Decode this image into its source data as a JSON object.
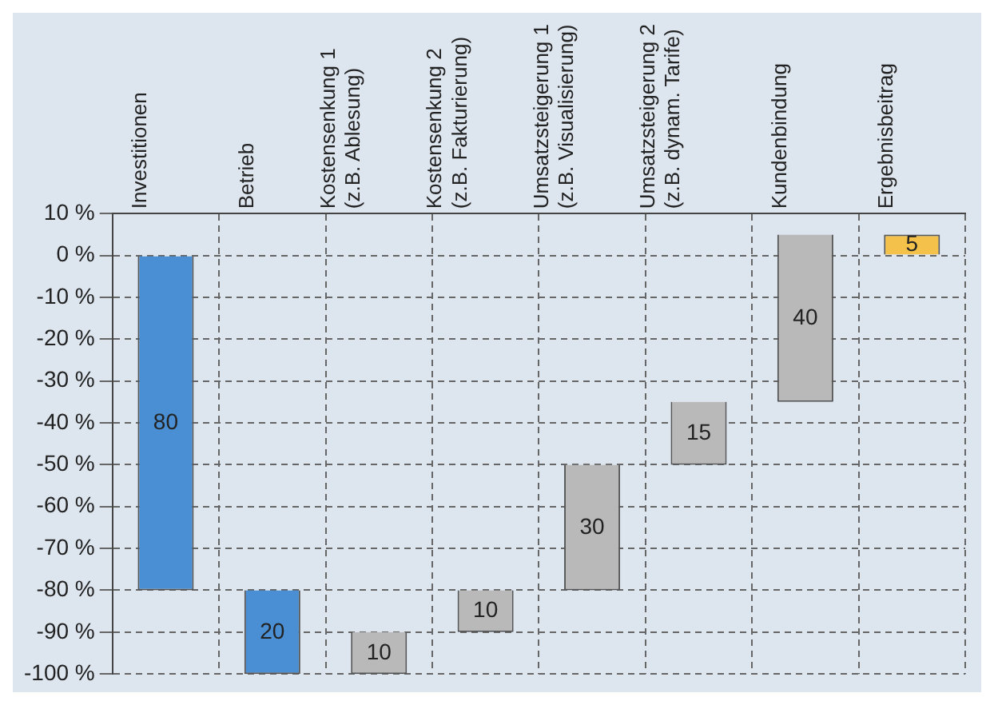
{
  "chart_data": {
    "type": "bar",
    "categories": [
      "Investitionen",
      "Betrieb",
      "Kostensenkung 1\n(z.B. Ablesung)",
      "Kostensenkung 2\n(z.B. Fakturierung)",
      "Umsatzsteigerung 1\n(z.B. Visualisierung)",
      "Umsatzsteigerung 2\n(z.B. dynam. Tarife)",
      "Kundenbindung",
      "Ergebnisbeitrag"
    ],
    "base": [
      0,
      -80,
      -100,
      -90,
      -80,
      -50,
      -35,
      0
    ],
    "values": [
      -80,
      -20,
      10,
      10,
      30,
      15,
      40,
      5
    ],
    "value_labels": [
      "80",
      "20",
      "10",
      "10",
      "30",
      "15",
      "40",
      "5"
    ],
    "colors": [
      "#4a8fd3",
      "#4a8fd3",
      "#b9b9b9",
      "#b9b9b9",
      "#b9b9b9",
      "#b9b9b9",
      "#b9b9b9",
      "#f4c24a"
    ],
    "ylim": [
      -100,
      10
    ],
    "yticks": [
      {
        "value": 10,
        "label": "10 %"
      },
      {
        "value": 0,
        "label": "0 %"
      },
      {
        "value": -10,
        "label": "-10 %"
      },
      {
        "value": -20,
        "label": "-20 %"
      },
      {
        "value": -30,
        "label": "-30 %"
      },
      {
        "value": -40,
        "label": "-40 %"
      },
      {
        "value": -50,
        "label": "-50 %"
      },
      {
        "value": -60,
        "label": "-60 %"
      },
      {
        "value": -70,
        "label": "-70 %"
      },
      {
        "value": -80,
        "label": "-80 %"
      },
      {
        "value": -90,
        "label": "-90 %"
      },
      {
        "value": -100,
        "label": "-100 %"
      }
    ],
    "grid": true
  }
}
